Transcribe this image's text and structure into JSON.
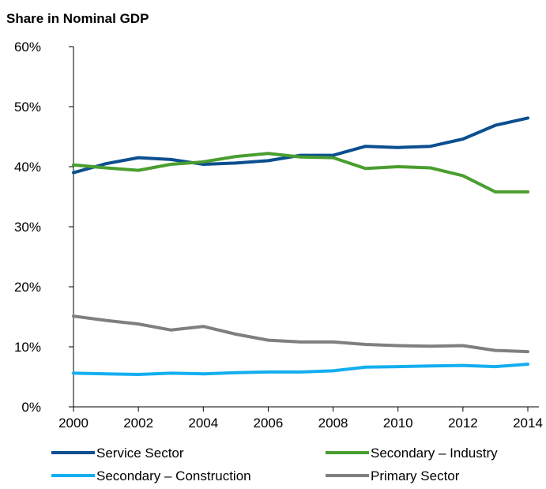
{
  "chart_data": {
    "type": "line",
    "title": "Share in Nominal GDP",
    "xlabel": "",
    "ylabel": "",
    "x": [
      2000,
      2001,
      2002,
      2003,
      2004,
      2005,
      2006,
      2007,
      2008,
      2009,
      2010,
      2011,
      2012,
      2013,
      2014
    ],
    "x_tick_labels": [
      "2000",
      "2002",
      "2004",
      "2006",
      "2008",
      "2010",
      "2012",
      "2014"
    ],
    "y_tick_labels": [
      "0%",
      "10%",
      "20%",
      "30%",
      "40%",
      "50%",
      "60%"
    ],
    "xlim": [
      2000,
      2014
    ],
    "ylim": [
      0,
      60
    ],
    "grid": false,
    "legend_position": "bottom",
    "series": [
      {
        "name": "Service Sector",
        "color": "#0b4f8f",
        "values": [
          39.0,
          40.5,
          41.5,
          41.2,
          40.4,
          40.6,
          41.0,
          41.9,
          41.9,
          43.4,
          43.2,
          43.4,
          44.6,
          46.9,
          48.1
        ]
      },
      {
        "name": "Secondary – Industry",
        "color": "#4a9e2f",
        "values": [
          40.3,
          39.8,
          39.4,
          40.4,
          40.8,
          41.7,
          42.2,
          41.6,
          41.5,
          39.7,
          40.0,
          39.8,
          38.5,
          35.8,
          35.8
        ]
      },
      {
        "name": "Secondary – Construction",
        "color": "#13aef0",
        "values": [
          5.6,
          5.5,
          5.4,
          5.6,
          5.5,
          5.7,
          5.8,
          5.8,
          6.0,
          6.6,
          6.7,
          6.8,
          6.9,
          6.7,
          7.1
        ]
      },
      {
        "name": "Primary Sector",
        "color": "#7f7f7f",
        "values": [
          15.1,
          14.4,
          13.8,
          12.8,
          13.4,
          12.1,
          11.1,
          10.8,
          10.8,
          10.4,
          10.2,
          10.1,
          10.2,
          9.4,
          9.2
        ]
      }
    ]
  }
}
